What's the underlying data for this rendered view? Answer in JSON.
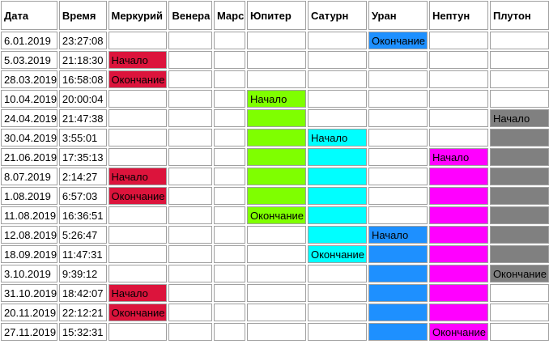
{
  "headers": [
    "Дата",
    "Время",
    "Меркурий",
    "Венера",
    "Марс",
    "Юпитер",
    "Сатурн",
    "Уран",
    "Нептун",
    "Плутон"
  ],
  "planet_keys": [
    "mercury",
    "venus",
    "mars",
    "jupiter",
    "saturn",
    "uranus",
    "neptune",
    "pluto"
  ],
  "colors": {
    "mercury": "#dc143c",
    "jupiter": "#7fff00",
    "saturn": "#00ffff",
    "uranus": "#1e90ff",
    "neptune": "#ff00ff",
    "pluto": "#808080"
  },
  "rows": [
    {
      "date": "6.01.2019",
      "time": "23:27:08",
      "cells": [
        {
          "text": "",
          "fill": ""
        },
        {
          "text": "",
          "fill": ""
        },
        {
          "text": "",
          "fill": ""
        },
        {
          "text": "",
          "fill": ""
        },
        {
          "text": "",
          "fill": ""
        },
        {
          "text": "Окончание",
          "fill": "uranus"
        },
        {
          "text": "",
          "fill": ""
        },
        {
          "text": "",
          "fill": ""
        }
      ]
    },
    {
      "date": "5.03.2019",
      "time": "21:18:30",
      "cells": [
        {
          "text": "Начало",
          "fill": "mercury"
        },
        {
          "text": "",
          "fill": ""
        },
        {
          "text": "",
          "fill": ""
        },
        {
          "text": "",
          "fill": ""
        },
        {
          "text": "",
          "fill": ""
        },
        {
          "text": "",
          "fill": ""
        },
        {
          "text": "",
          "fill": ""
        },
        {
          "text": "",
          "fill": ""
        }
      ]
    },
    {
      "date": "28.03.2019",
      "time": "16:58:08",
      "cells": [
        {
          "text": "Окончание",
          "fill": "mercury"
        },
        {
          "text": "",
          "fill": ""
        },
        {
          "text": "",
          "fill": ""
        },
        {
          "text": "",
          "fill": ""
        },
        {
          "text": "",
          "fill": ""
        },
        {
          "text": "",
          "fill": ""
        },
        {
          "text": "",
          "fill": ""
        },
        {
          "text": "",
          "fill": ""
        }
      ]
    },
    {
      "date": "10.04.2019",
      "time": "20:00:04",
      "cells": [
        {
          "text": "",
          "fill": ""
        },
        {
          "text": "",
          "fill": ""
        },
        {
          "text": "",
          "fill": ""
        },
        {
          "text": "Начало",
          "fill": "jupiter"
        },
        {
          "text": "",
          "fill": ""
        },
        {
          "text": "",
          "fill": ""
        },
        {
          "text": "",
          "fill": ""
        },
        {
          "text": "",
          "fill": ""
        }
      ]
    },
    {
      "date": "24.04.2019",
      "time": "21:47:38",
      "cells": [
        {
          "text": "",
          "fill": ""
        },
        {
          "text": "",
          "fill": ""
        },
        {
          "text": "",
          "fill": ""
        },
        {
          "text": "",
          "fill": "jupiter"
        },
        {
          "text": "",
          "fill": ""
        },
        {
          "text": "",
          "fill": ""
        },
        {
          "text": "",
          "fill": ""
        },
        {
          "text": "Начало",
          "fill": "pluto"
        }
      ]
    },
    {
      "date": "30.04.2019",
      "time": "3:55:01",
      "cells": [
        {
          "text": "",
          "fill": ""
        },
        {
          "text": "",
          "fill": ""
        },
        {
          "text": "",
          "fill": ""
        },
        {
          "text": "",
          "fill": "jupiter"
        },
        {
          "text": "Начало",
          "fill": "saturn"
        },
        {
          "text": "",
          "fill": ""
        },
        {
          "text": "",
          "fill": ""
        },
        {
          "text": "",
          "fill": "pluto"
        }
      ]
    },
    {
      "date": "21.06.2019",
      "time": "17:35:13",
      "cells": [
        {
          "text": "",
          "fill": ""
        },
        {
          "text": "",
          "fill": ""
        },
        {
          "text": "",
          "fill": ""
        },
        {
          "text": "",
          "fill": "jupiter"
        },
        {
          "text": "",
          "fill": "saturn"
        },
        {
          "text": "",
          "fill": ""
        },
        {
          "text": "Начало",
          "fill": "neptune"
        },
        {
          "text": "",
          "fill": "pluto"
        }
      ]
    },
    {
      "date": "8.07.2019",
      "time": "2:14:27",
      "cells": [
        {
          "text": "Начало",
          "fill": "mercury"
        },
        {
          "text": "",
          "fill": ""
        },
        {
          "text": "",
          "fill": ""
        },
        {
          "text": "",
          "fill": "jupiter"
        },
        {
          "text": "",
          "fill": "saturn"
        },
        {
          "text": "",
          "fill": ""
        },
        {
          "text": "",
          "fill": "neptune"
        },
        {
          "text": "",
          "fill": "pluto"
        }
      ]
    },
    {
      "date": "1.08.2019",
      "time": "6:57:03",
      "cells": [
        {
          "text": "Окончание",
          "fill": "mercury"
        },
        {
          "text": "",
          "fill": ""
        },
        {
          "text": "",
          "fill": ""
        },
        {
          "text": "",
          "fill": "jupiter"
        },
        {
          "text": "",
          "fill": "saturn"
        },
        {
          "text": "",
          "fill": ""
        },
        {
          "text": "",
          "fill": "neptune"
        },
        {
          "text": "",
          "fill": "pluto"
        }
      ]
    },
    {
      "date": "11.08.2019",
      "time": "16:36:51",
      "cells": [
        {
          "text": "",
          "fill": ""
        },
        {
          "text": "",
          "fill": ""
        },
        {
          "text": "",
          "fill": ""
        },
        {
          "text": "Окончание",
          "fill": "jupiter"
        },
        {
          "text": "",
          "fill": "saturn"
        },
        {
          "text": "",
          "fill": ""
        },
        {
          "text": "",
          "fill": "neptune"
        },
        {
          "text": "",
          "fill": "pluto"
        }
      ]
    },
    {
      "date": "12.08.2019",
      "time": "5:26:47",
      "cells": [
        {
          "text": "",
          "fill": ""
        },
        {
          "text": "",
          "fill": ""
        },
        {
          "text": "",
          "fill": ""
        },
        {
          "text": "",
          "fill": ""
        },
        {
          "text": "",
          "fill": "saturn"
        },
        {
          "text": "Начало",
          "fill": "uranus"
        },
        {
          "text": "",
          "fill": "neptune"
        },
        {
          "text": "",
          "fill": "pluto"
        }
      ]
    },
    {
      "date": "18.09.2019",
      "time": "11:47:31",
      "cells": [
        {
          "text": "",
          "fill": ""
        },
        {
          "text": "",
          "fill": ""
        },
        {
          "text": "",
          "fill": ""
        },
        {
          "text": "",
          "fill": ""
        },
        {
          "text": "Окончание",
          "fill": "saturn"
        },
        {
          "text": "",
          "fill": "uranus"
        },
        {
          "text": "",
          "fill": "neptune"
        },
        {
          "text": "",
          "fill": "pluto"
        }
      ]
    },
    {
      "date": "3.10.2019",
      "time": "9:39:12",
      "cells": [
        {
          "text": "",
          "fill": ""
        },
        {
          "text": "",
          "fill": ""
        },
        {
          "text": "",
          "fill": ""
        },
        {
          "text": "",
          "fill": ""
        },
        {
          "text": "",
          "fill": ""
        },
        {
          "text": "",
          "fill": "uranus"
        },
        {
          "text": "",
          "fill": "neptune"
        },
        {
          "text": "Окончание",
          "fill": "pluto"
        }
      ]
    },
    {
      "date": "31.10.2019",
      "time": "18:42:07",
      "cells": [
        {
          "text": "Начало",
          "fill": "mercury"
        },
        {
          "text": "",
          "fill": ""
        },
        {
          "text": "",
          "fill": ""
        },
        {
          "text": "",
          "fill": ""
        },
        {
          "text": "",
          "fill": ""
        },
        {
          "text": "",
          "fill": "uranus"
        },
        {
          "text": "",
          "fill": "neptune"
        },
        {
          "text": "",
          "fill": ""
        }
      ]
    },
    {
      "date": "20.11.2019",
      "time": "22:12:21",
      "cells": [
        {
          "text": "Окончание",
          "fill": "mercury"
        },
        {
          "text": "",
          "fill": ""
        },
        {
          "text": "",
          "fill": ""
        },
        {
          "text": "",
          "fill": ""
        },
        {
          "text": "",
          "fill": ""
        },
        {
          "text": "",
          "fill": "uranus"
        },
        {
          "text": "",
          "fill": "neptune"
        },
        {
          "text": "",
          "fill": ""
        }
      ]
    },
    {
      "date": "27.11.2019",
      "time": "15:32:31",
      "cells": [
        {
          "text": "",
          "fill": ""
        },
        {
          "text": "",
          "fill": ""
        },
        {
          "text": "",
          "fill": ""
        },
        {
          "text": "",
          "fill": ""
        },
        {
          "text": "",
          "fill": ""
        },
        {
          "text": "",
          "fill": "uranus"
        },
        {
          "text": "Окончание",
          "fill": "neptune"
        },
        {
          "text": "",
          "fill": ""
        }
      ]
    }
  ]
}
